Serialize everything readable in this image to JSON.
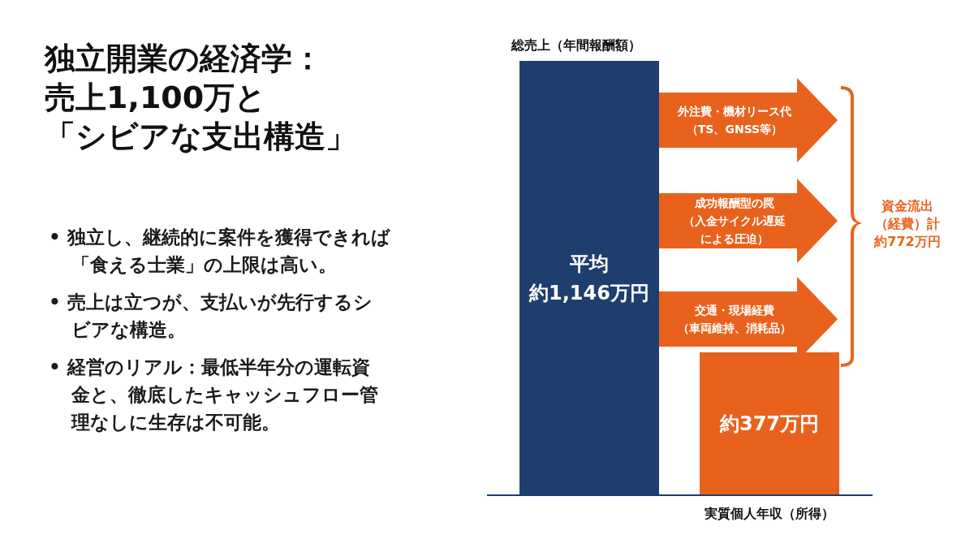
{
  "chart_data": {
    "type": "bar",
    "title": "独立開業の経済学：売上1,100万と「シビアな支出構造」",
    "categories": [
      "総売上（年間報酬額）",
      "実質個人年収（所得）"
    ],
    "values": [
      1146,
      377
    ],
    "colors": [
      "#1e3f6d",
      "#e9621d"
    ],
    "value_labels": [
      "平均約1,146万円",
      "約377万円"
    ],
    "annotations": [
      "外注費・機材リース代（TS、GNSS等）",
      "成功報酬型の罠（入金サイクル遅延による圧迫）",
      "交通・現場経費（車両維持、消耗品）",
      "資金流出（経費）計約772万円",
      "• 独立し、継続的に案件を獲得できれば「食える士業」の上限は高い。",
      "• 売上は立つが、支払いが先行するシビアな構造。",
      "• 経営のリアル：最低半年分の運転資金と、徹底したキャッシュフロー管理なしに生存は不可能。"
    ]
  }
}
